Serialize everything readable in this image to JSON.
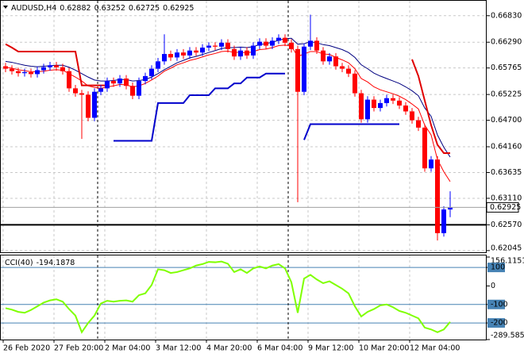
{
  "chart_data": [
    {
      "type": "candlestick",
      "title": "AUDUSD,H4",
      "categories": [
        "26 Feb 2020",
        null,
        null,
        null,
        null,
        null,
        null,
        null,
        "27 Feb 20:00",
        null,
        null,
        null,
        null,
        null,
        null,
        null,
        "2 Mar 04:00",
        null,
        null,
        null,
        null,
        null,
        null,
        null,
        "3 Mar 12:00",
        null,
        null,
        null,
        null,
        null,
        null,
        null,
        "4 Mar 20:00",
        null,
        null,
        null,
        null,
        null,
        null,
        null,
        "6 Mar 04:00",
        null,
        null,
        null,
        null,
        null,
        null,
        null,
        "9 Mar 12:00",
        null,
        null,
        null,
        null,
        null,
        null,
        null,
        "10 Mar 20:00",
        null,
        null,
        null,
        null,
        null,
        null,
        null,
        "12 Mar 04:00",
        null,
        null,
        null,
        null,
        null,
        null
      ],
      "open": [
        0.658,
        0.6575,
        0.657,
        0.6566,
        0.6568,
        0.6564,
        0.6572,
        0.6578,
        0.6582,
        0.6578,
        0.657,
        0.6535,
        0.6525,
        0.6522,
        0.6475,
        0.6528,
        0.6535,
        0.655,
        0.6545,
        0.6555,
        0.654,
        0.652,
        0.655,
        0.656,
        0.6575,
        0.659,
        0.6605,
        0.6598,
        0.6608,
        0.6602,
        0.6612,
        0.6608,
        0.6618,
        0.6622,
        0.662,
        0.6628,
        0.6615,
        0.66,
        0.6612,
        0.6602,
        0.6622,
        0.663,
        0.6622,
        0.6632,
        0.6638,
        0.6628,
        0.6615,
        0.6528,
        0.662,
        0.6632,
        0.6612,
        0.659,
        0.66,
        0.658,
        0.6575,
        0.6565,
        0.6525,
        0.6472,
        0.6512,
        0.6495,
        0.6505,
        0.6515,
        0.651,
        0.65,
        0.6488,
        0.647,
        0.6455,
        0.6372,
        0.639,
        0.624,
        0.62882
      ],
      "high": [
        0.6587,
        0.6582,
        0.6577,
        0.6575,
        0.6575,
        0.6579,
        0.6585,
        0.6589,
        0.6589,
        0.6585,
        0.6577,
        0.6542,
        0.6532,
        0.6529,
        0.6535,
        0.6542,
        0.6557,
        0.6557,
        0.6562,
        0.6562,
        0.6547,
        0.6557,
        0.6567,
        0.6582,
        0.6597,
        0.6645,
        0.6612,
        0.6615,
        0.6615,
        0.6619,
        0.6619,
        0.6625,
        0.6629,
        0.6629,
        0.6635,
        0.6635,
        0.6622,
        0.6619,
        0.6619,
        0.6629,
        0.6637,
        0.6637,
        0.6639,
        0.6645,
        0.6645,
        0.6635,
        0.6622,
        0.6627,
        0.6685,
        0.6639,
        0.6619,
        0.6607,
        0.6607,
        0.6587,
        0.6582,
        0.6572,
        0.6532,
        0.6519,
        0.6519,
        0.6512,
        0.6522,
        0.6522,
        0.6517,
        0.6507,
        0.6495,
        0.6477,
        0.6462,
        0.6397,
        0.6397,
        0.6295,
        0.63252
      ],
      "low": [
        0.6568,
        0.6563,
        0.6559,
        0.6559,
        0.6557,
        0.6557,
        0.6565,
        0.6571,
        0.6571,
        0.6563,
        0.6528,
        0.6518,
        0.6432,
        0.6468,
        0.6468,
        0.6521,
        0.6528,
        0.6538,
        0.6538,
        0.6533,
        0.6513,
        0.6513,
        0.6543,
        0.6553,
        0.6568,
        0.6583,
        0.6591,
        0.6591,
        0.6595,
        0.6595,
        0.6601,
        0.6601,
        0.6611,
        0.6613,
        0.6613,
        0.6608,
        0.6593,
        0.6593,
        0.6595,
        0.6595,
        0.6615,
        0.6615,
        0.6615,
        0.6625,
        0.6621,
        0.6608,
        0.6303,
        0.6521,
        0.6613,
        0.6605,
        0.6583,
        0.6583,
        0.6573,
        0.6568,
        0.6558,
        0.6518,
        0.6465,
        0.6465,
        0.6488,
        0.6488,
        0.6498,
        0.6503,
        0.6493,
        0.6481,
        0.6463,
        0.6448,
        0.6365,
        0.6365,
        0.6225,
        0.6233,
        0.62725
      ],
      "close": [
        0.6575,
        0.657,
        0.6566,
        0.6568,
        0.6564,
        0.6572,
        0.6578,
        0.6582,
        0.6578,
        0.657,
        0.6535,
        0.6525,
        0.6522,
        0.6475,
        0.6528,
        0.6535,
        0.655,
        0.6545,
        0.6555,
        0.654,
        0.652,
        0.655,
        0.656,
        0.6575,
        0.659,
        0.6605,
        0.6598,
        0.6608,
        0.6602,
        0.6612,
        0.6608,
        0.6618,
        0.6622,
        0.662,
        0.6628,
        0.6615,
        0.66,
        0.6612,
        0.6602,
        0.6622,
        0.663,
        0.6622,
        0.6632,
        0.6638,
        0.6628,
        0.6615,
        0.6528,
        0.662,
        0.6632,
        0.6612,
        0.659,
        0.66,
        0.658,
        0.6575,
        0.6565,
        0.6525,
        0.6472,
        0.6512,
        0.6495,
        0.6505,
        0.6515,
        0.651,
        0.65,
        0.6488,
        0.647,
        0.6455,
        0.6372,
        0.639,
        0.624,
        0.62882,
        0.62925
      ],
      "up_color": "#0000ff",
      "down_color": "#ff0000",
      "overlays": [
        {
          "color": "#ff0000",
          "width": 1,
          "values": [
            0.6578,
            0.6576,
            0.6573,
            0.6571,
            0.6569,
            0.6569,
            0.657,
            0.6572,
            0.6573,
            0.6572,
            0.6565,
            0.6558,
            0.655,
            0.654,
            0.6537,
            0.6535,
            0.6538,
            0.654,
            0.6543,
            0.6542,
            0.6538,
            0.654,
            0.6545,
            0.6552,
            0.656,
            0.657,
            0.6576,
            0.6583,
            0.6587,
            0.6592,
            0.6595,
            0.6599,
            0.6603,
            0.6606,
            0.661,
            0.6611,
            0.6608,
            0.6609,
            0.6607,
            0.661,
            0.6614,
            0.6615,
            0.6618,
            0.6622,
            0.6623,
            0.6621,
            0.66,
            0.6605,
            0.661,
            0.661,
            0.6605,
            0.6604,
            0.6598,
            0.6593,
            0.6587,
            0.6575,
            0.6555,
            0.6548,
            0.6538,
            0.6532,
            0.6528,
            0.6524,
            0.6519,
            0.6512,
            0.6503,
            0.6493,
            0.646,
            0.644,
            0.639,
            0.6365,
            0.6345
          ]
        },
        {
          "color": "#000080",
          "width": 1,
          "values": [
            0.659,
            0.6588,
            0.6585,
            0.6582,
            0.658,
            0.6579,
            0.658,
            0.6581,
            0.6582,
            0.6582,
            0.6578,
            0.6572,
            0.6565,
            0.6558,
            0.6552,
            0.655,
            0.655,
            0.6551,
            0.6553,
            0.6553,
            0.655,
            0.6551,
            0.6553,
            0.6558,
            0.6565,
            0.6573,
            0.658,
            0.6587,
            0.6592,
            0.6597,
            0.66,
            0.6604,
            0.6608,
            0.6612,
            0.6616,
            0.6618,
            0.6618,
            0.6619,
            0.6618,
            0.662,
            0.6624,
            0.6626,
            0.6629,
            0.6633,
            0.6636,
            0.6637,
            0.6625,
            0.6626,
            0.663,
            0.6628,
            0.6624,
            0.6622,
            0.6618,
            0.6614,
            0.6608,
            0.6598,
            0.6583,
            0.6575,
            0.6566,
            0.656,
            0.6555,
            0.655,
            0.6545,
            0.6538,
            0.653,
            0.652,
            0.6495,
            0.6478,
            0.644,
            0.6415,
            0.6395
          ]
        },
        {
          "color": "#0000cc",
          "width": 2,
          "values": [
            null,
            null,
            null,
            null,
            null,
            null,
            null,
            null,
            null,
            null,
            null,
            null,
            null,
            null,
            null,
            null,
            null,
            0.6428,
            0.6428,
            0.6428,
            0.6428,
            0.6428,
            0.6428,
            0.6428,
            0.6505,
            0.6505,
            0.6505,
            0.6505,
            0.6505,
            0.6521,
            0.6521,
            0.6521,
            0.6521,
            0.6535,
            0.6535,
            0.6535,
            0.6545,
            0.6545,
            0.6557,
            0.6557,
            0.6557,
            0.6565,
            0.6565,
            0.6565,
            0.6565,
            null,
            null,
            0.643,
            0.6462,
            0.6462,
            0.6462,
            0.6462,
            0.6462,
            0.6462,
            0.6462,
            0.6462,
            0.6462,
            0.6462,
            0.6462,
            0.6462,
            0.6462,
            0.6462,
            0.6462,
            null,
            null,
            null,
            null,
            null,
            null,
            null,
            null
          ]
        },
        {
          "color": "#e00000",
          "width": 2,
          "values": [
            0.6625,
            0.6618,
            0.661,
            0.661,
            0.661,
            0.661,
            0.661,
            0.661,
            0.661,
            0.661,
            0.661,
            0.661,
            0.6541,
            0.6541,
            0.6541,
            0.6541,
            0.6541,
            null,
            null,
            null,
            null,
            null,
            null,
            null,
            null,
            null,
            null,
            null,
            null,
            null,
            null,
            null,
            null,
            null,
            null,
            null,
            null,
            null,
            null,
            null,
            null,
            null,
            null,
            null,
            null,
            null,
            null,
            null,
            null,
            null,
            null,
            null,
            null,
            null,
            null,
            null,
            null,
            null,
            null,
            null,
            null,
            null,
            null,
            null,
            0.6594,
            0.656,
            0.651,
            0.646,
            0.642,
            0.6403,
            0.6403
          ]
        }
      ],
      "hline": {
        "value": 0.6257,
        "color": "#000000"
      },
      "ylim": [
        0.6201,
        0.6715
      ],
      "yticks": [
        {
          "value": 0.6683,
          "label": "0.66830"
        },
        {
          "value": 0.6629,
          "label": "0.66290"
        },
        0.65765,
        0.65225,
        {
          "value": 0.647,
          "label": "0.64700"
        },
        {
          "value": 0.6416,
          "label": "0.64160"
        },
        0.63635,
        {
          "value": 0.6311,
          "label": "0.63110"
        },
        {
          "value": 0.6257,
          "label": "0.62570"
        },
        0.62045
      ],
      "grid": true
    },
    {
      "type": "line",
      "title": "CCI(40)",
      "color": "#7fff00",
      "values": [
        -120,
        -128,
        -140,
        -145,
        -130,
        -110,
        -90,
        -78,
        -72,
        -85,
        -125,
        -160,
        -250,
        -200,
        -160,
        -95,
        -80,
        -85,
        -80,
        -78,
        -85,
        -50,
        -40,
        5,
        90,
        85,
        70,
        75,
        85,
        95,
        110,
        118,
        130,
        128,
        132,
        120,
        75,
        90,
        70,
        95,
        105,
        95,
        110,
        118,
        95,
        20,
        -145,
        40,
        60,
        35,
        15,
        25,
        5,
        -15,
        -40,
        -110,
        -165,
        -140,
        -125,
        -105,
        -100,
        -115,
        -135,
        -145,
        -160,
        -175,
        -225,
        -235,
        -250,
        -235,
        -194.1878
      ],
      "ylim": [
        -289.5853,
        156.1151
      ],
      "yticks": [
        156.1151,
        100,
        0,
        -100,
        -200,
        -289.5853
      ],
      "levels": [
        100,
        -100,
        -200
      ],
      "level_color": "#4682b4"
    }
  ]
}
